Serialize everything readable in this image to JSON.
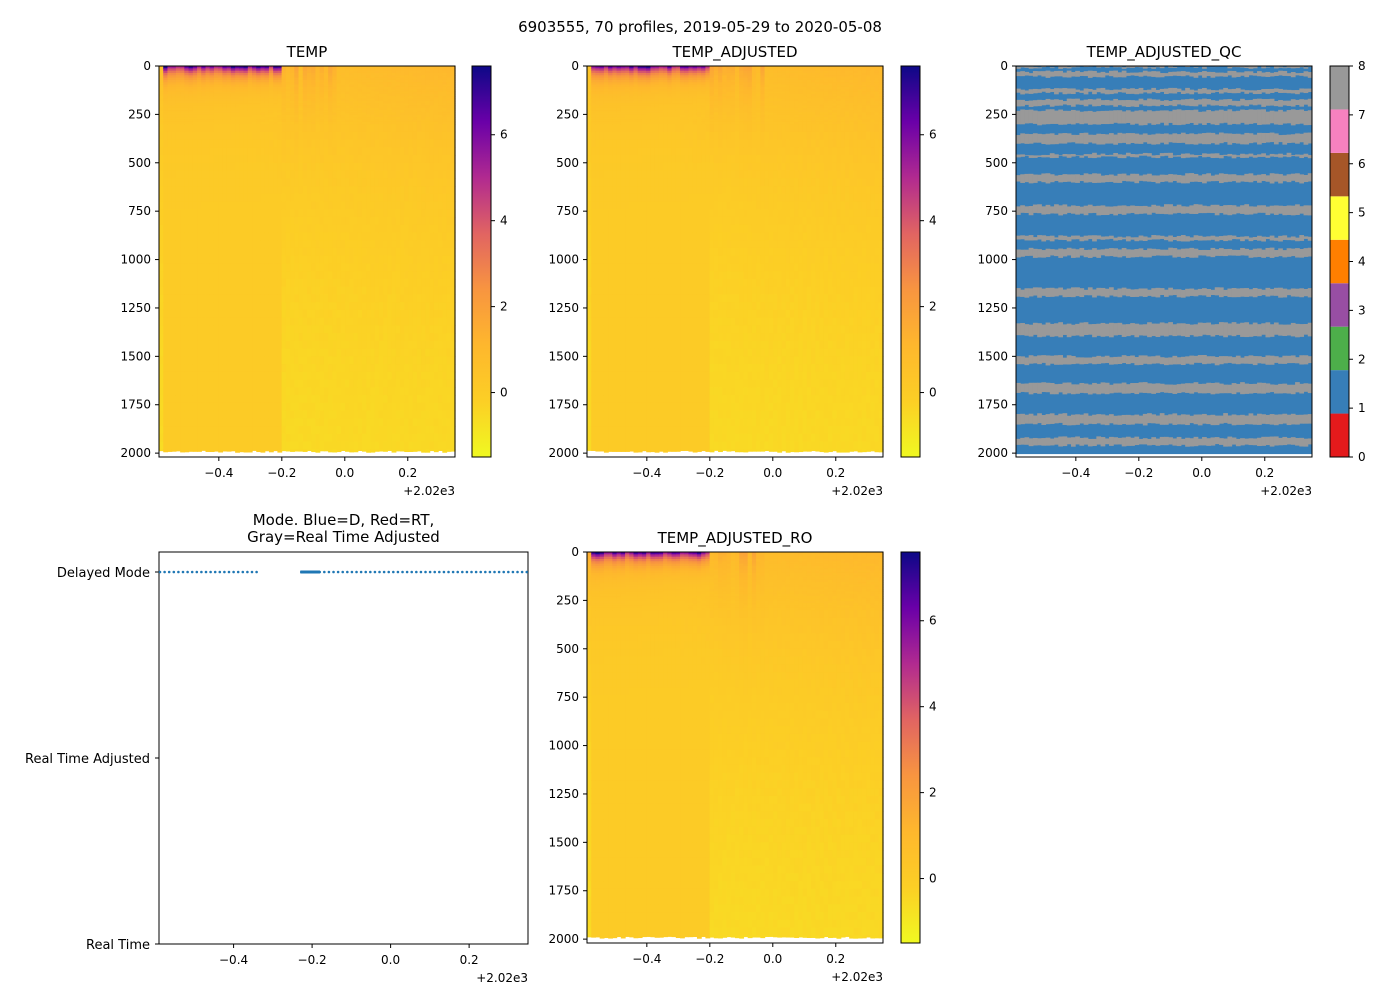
{
  "figure_title": "6903555, 70 profiles, 2019-05-29 to 2020-05-08",
  "colors": {
    "plasma_ramp": [
      "#f0f921",
      "#fccf25",
      "#feb72d",
      "#f89540",
      "#e16462",
      "#b12a90",
      "#6a00a8",
      "#0d0887"
    ],
    "qc_good": "#377eb8",
    "qc_missing": "#999999",
    "qc_palette": [
      "#e41a1c",
      "#377eb8",
      "#4daf4a",
      "#984ea3",
      "#ff7f00",
      "#ffff33",
      "#a65628",
      "#f781bf",
      "#999999"
    ],
    "mode_marker": "#1f77b4",
    "missing_strip": "#ffffff"
  },
  "chart_data": [
    {
      "id": "temp",
      "type": "heatmap",
      "title": "TEMP",
      "xlim": [
        -0.59,
        0.35
      ],
      "ylim": [
        2020,
        0
      ],
      "x_offset_label": "+2.02e3",
      "x_ticks": [
        {
          "v": -0.4,
          "l": "−0.4"
        },
        {
          "v": -0.2,
          "l": "−0.2"
        },
        {
          "v": 0.0,
          "l": "0.0"
        },
        {
          "v": 0.2,
          "l": "0.2"
        }
      ],
      "y_ticks": [
        {
          "v": 0,
          "l": "0"
        },
        {
          "v": 250,
          "l": "250"
        },
        {
          "v": 500,
          "l": "500"
        },
        {
          "v": 750,
          "l": "750"
        },
        {
          "v": 1000,
          "l": "1000"
        },
        {
          "v": 1250,
          "l": "1250"
        },
        {
          "v": 1500,
          "l": "1500"
        },
        {
          "v": 1750,
          "l": "1750"
        },
        {
          "v": 2000,
          "l": "2000"
        }
      ],
      "colorbar": {
        "range": [
          -1.5,
          7.6
        ],
        "ticks": [
          {
            "v": 0,
            "l": "0"
          },
          {
            "v": 2,
            "l": "2"
          },
          {
            "v": 4,
            "l": "4"
          },
          {
            "v": 6,
            "l": "6"
          }
        ]
      },
      "cold_surface_feature": {
        "x_start": -0.57,
        "x_end": -0.2,
        "max_value": 7.3
      }
    },
    {
      "id": "temp_adjusted",
      "type": "heatmap",
      "title": "TEMP_ADJUSTED",
      "xlim": [
        -0.59,
        0.35
      ],
      "ylim": [
        2020,
        0
      ],
      "x_offset_label": "+2.02e3",
      "x_ticks": [
        {
          "v": -0.4,
          "l": "−0.4"
        },
        {
          "v": -0.2,
          "l": "−0.2"
        },
        {
          "v": 0.0,
          "l": "0.0"
        },
        {
          "v": 0.2,
          "l": "0.2"
        }
      ],
      "y_ticks": [
        {
          "v": 0,
          "l": "0"
        },
        {
          "v": 250,
          "l": "250"
        },
        {
          "v": 500,
          "l": "500"
        },
        {
          "v": 750,
          "l": "750"
        },
        {
          "v": 1000,
          "l": "1000"
        },
        {
          "v": 1250,
          "l": "1250"
        },
        {
          "v": 1500,
          "l": "1500"
        },
        {
          "v": 1750,
          "l": "1750"
        },
        {
          "v": 2000,
          "l": "2000"
        }
      ],
      "colorbar": {
        "range": [
          -1.5,
          7.6
        ],
        "ticks": [
          {
            "v": 0,
            "l": "0"
          },
          {
            "v": 2,
            "l": "2"
          },
          {
            "v": 4,
            "l": "4"
          },
          {
            "v": 6,
            "l": "6"
          }
        ]
      },
      "cold_surface_feature": {
        "x_start": -0.57,
        "x_end": -0.2,
        "max_value": 7.3
      }
    },
    {
      "id": "temp_adjusted_qc",
      "type": "heatmap",
      "title": "TEMP_ADJUSTED_QC",
      "xlim": [
        -0.59,
        0.35
      ],
      "ylim": [
        2020,
        0
      ],
      "x_offset_label": "+2.02e3",
      "x_ticks": [
        {
          "v": -0.4,
          "l": "−0.4"
        },
        {
          "v": -0.2,
          "l": "−0.2"
        },
        {
          "v": 0.0,
          "l": "0.0"
        },
        {
          "v": 0.2,
          "l": "0.2"
        }
      ],
      "y_ticks": [
        {
          "v": 0,
          "l": "0"
        },
        {
          "v": 250,
          "l": "250"
        },
        {
          "v": 500,
          "l": "500"
        },
        {
          "v": 750,
          "l": "750"
        },
        {
          "v": 1000,
          "l": "1000"
        },
        {
          "v": 1250,
          "l": "1250"
        },
        {
          "v": 1500,
          "l": "1500"
        },
        {
          "v": 1750,
          "l": "1750"
        },
        {
          "v": 2000,
          "l": "2000"
        }
      ],
      "qc_values_present": [
        1,
        8
      ],
      "qc_missing_depth_bands": [
        [
          0,
          8
        ],
        [
          30,
          55
        ],
        [
          120,
          140
        ],
        [
          175,
          205
        ],
        [
          230,
          300
        ],
        [
          350,
          400
        ],
        [
          455,
          470
        ],
        [
          560,
          600
        ],
        [
          720,
          765
        ],
        [
          880,
          900
        ],
        [
          945,
          985
        ],
        [
          1150,
          1190
        ],
        [
          1330,
          1395
        ],
        [
          1500,
          1540
        ],
        [
          1640,
          1690
        ],
        [
          1800,
          1850
        ],
        [
          1920,
          1960
        ]
      ],
      "colorbar": {
        "categories": [
          0,
          1,
          2,
          3,
          4,
          5,
          6,
          7,
          8
        ],
        "ticks": [
          {
            "v": 0,
            "l": "0"
          },
          {
            "v": 1,
            "l": "1"
          },
          {
            "v": 2,
            "l": "2"
          },
          {
            "v": 3,
            "l": "3"
          },
          {
            "v": 4,
            "l": "4"
          },
          {
            "v": 5,
            "l": "5"
          },
          {
            "v": 6,
            "l": "6"
          },
          {
            "v": 7,
            "l": "7"
          },
          {
            "v": 8,
            "l": "8"
          }
        ]
      }
    },
    {
      "id": "mode",
      "type": "scatter",
      "title_lines": [
        "Mode. Blue=D, Red=RT,",
        "Gray=Real Time Adjusted"
      ],
      "xlim": [
        -0.59,
        0.35
      ],
      "x_offset_label": "+2.02e3",
      "x_ticks": [
        {
          "v": -0.4,
          "l": "−0.4"
        },
        {
          "v": -0.2,
          "l": "−0.2"
        },
        {
          "v": 0.0,
          "l": "0.0"
        },
        {
          "v": 0.2,
          "l": "0.2"
        }
      ],
      "y_categories": [
        "Delayed Mode",
        "Real Time Adjusted",
        "Real Time"
      ],
      "series": [
        {
          "name": "Delayed Mode",
          "marker": "dots",
          "x_ranges": [
            [
              -0.59,
              -0.33
            ],
            [
              -0.23,
              0.35
            ]
          ]
        },
        {
          "name": "Delayed Mode dense",
          "marker": "segment",
          "x_ranges": [
            [
              -0.23,
              -0.18
            ]
          ]
        }
      ]
    },
    {
      "id": "temp_adjusted_ro",
      "type": "heatmap",
      "title": "TEMP_ADJUSTED_RO",
      "xlim": [
        -0.59,
        0.35
      ],
      "ylim": [
        2020,
        0
      ],
      "x_offset_label": "+2.02e3",
      "x_ticks": [
        {
          "v": -0.4,
          "l": "−0.4"
        },
        {
          "v": -0.2,
          "l": "−0.2"
        },
        {
          "v": 0.0,
          "l": "0.0"
        },
        {
          "v": 0.2,
          "l": "0.2"
        }
      ],
      "y_ticks": [
        {
          "v": 0,
          "l": "0"
        },
        {
          "v": 250,
          "l": "250"
        },
        {
          "v": 500,
          "l": "500"
        },
        {
          "v": 750,
          "l": "750"
        },
        {
          "v": 1000,
          "l": "1000"
        },
        {
          "v": 1250,
          "l": "1250"
        },
        {
          "v": 1500,
          "l": "1500"
        },
        {
          "v": 1750,
          "l": "1750"
        },
        {
          "v": 2000,
          "l": "2000"
        }
      ],
      "colorbar": {
        "range": [
          -1.5,
          7.6
        ],
        "ticks": [
          {
            "v": 0,
            "l": "0"
          },
          {
            "v": 2,
            "l": "2"
          },
          {
            "v": 4,
            "l": "4"
          },
          {
            "v": 6,
            "l": "6"
          }
        ]
      },
      "cold_surface_feature": {
        "x_start": -0.57,
        "x_end": -0.2,
        "max_value": 7.3
      }
    }
  ]
}
